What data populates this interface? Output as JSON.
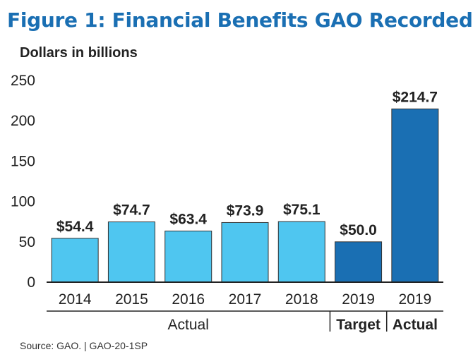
{
  "figure": {
    "title": "Figure 1: Financial Benefits GAO Recorded",
    "source": "Source: GAO. | GAO-20-1SP"
  },
  "colors": {
    "title": "#1a6fb3",
    "actual_light": "#4fc6f0",
    "dark_blue": "#1a6fb3",
    "axis": "#222222"
  },
  "chart_data": {
    "type": "bar",
    "ylabel": "Dollars in billions",
    "ylim": [
      0,
      250
    ],
    "yticks": [
      0,
      50,
      100,
      150,
      200,
      250
    ],
    "grid": false,
    "categories": [
      "2014",
      "2015",
      "2016",
      "2017",
      "2018",
      "2019",
      "2019"
    ],
    "values": [
      54.4,
      74.7,
      63.4,
      73.9,
      75.1,
      50.0,
      214.7
    ],
    "value_labels": [
      "$54.4",
      "$74.7",
      "$63.4",
      "$73.9",
      "$75.1",
      "$50.0",
      "$214.7"
    ],
    "bar_styles": [
      "actual_light",
      "actual_light",
      "actual_light",
      "actual_light",
      "actual_light",
      "dark_blue",
      "dark_blue"
    ],
    "groups": [
      {
        "label": "Actual",
        "bold": false,
        "from": 0,
        "to": 4
      },
      {
        "label": "Target",
        "bold": true,
        "from": 5,
        "to": 5
      },
      {
        "label": "Actual",
        "bold": true,
        "from": 6,
        "to": 6
      }
    ]
  }
}
